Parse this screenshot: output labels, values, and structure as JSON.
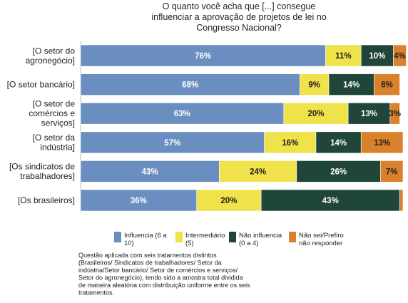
{
  "chart_data": {
    "type": "bar",
    "orientation": "horizontal",
    "stacked": true,
    "normalized": true,
    "title_lines": [
      "O quanto você acha que [...] consegue",
      "influenciar a aprovação de projetos de lei no",
      "Congresso Nacional?"
    ],
    "categories": [
      [
        "[O setor do",
        "agronegócio]"
      ],
      [
        "[O setor bancário]"
      ],
      [
        "[O setor de",
        "comércios e",
        "serviços]"
      ],
      [
        "[O setor da",
        "indústria]"
      ],
      [
        "[Os sindicatos de",
        "trabalhadores]"
      ],
      [
        "[Os brasileiros]"
      ]
    ],
    "series": [
      {
        "name_lines": [
          "Influencia (6 a",
          "10)"
        ],
        "color": "#6a8ebf",
        "label_color": "#ffffff",
        "values": [
          76,
          68,
          63,
          57,
          43,
          36
        ],
        "labels": [
          "76%",
          "68%",
          "63%",
          "57%",
          "43%",
          "36%"
        ]
      },
      {
        "name_lines": [
          "Intermediário",
          "(5)"
        ],
        "color": "#f0e24a",
        "label_color": "#222222",
        "values": [
          11,
          9,
          20,
          16,
          24,
          20
        ],
        "labels": [
          "11%",
          "9%",
          "20%",
          "16%",
          "24%",
          "20%"
        ]
      },
      {
        "name_lines": [
          "Não influencia",
          "(0 a 4)"
        ],
        "color": "#1f4638",
        "label_color": "#ffffff",
        "values": [
          10,
          14,
          13,
          14,
          26,
          43
        ],
        "labels": [
          "10%",
          "14%",
          "13%",
          "14%",
          "26%",
          "43%"
        ]
      },
      {
        "name_lines": [
          "Não sei/Prefiro",
          "não responder"
        ],
        "color": "#d9822b",
        "label_color": "#222222",
        "values": [
          4,
          8,
          3,
          13,
          7,
          1
        ],
        "labels": [
          "4%",
          "8%",
          "3%",
          "13%",
          "7%",
          ""
        ]
      }
    ],
    "xlim": [
      0,
      100
    ],
    "legend_position": "bottom",
    "note_lines": [
      "Questão aplicada com seis tratamentos distintos",
      "(Brasileiros/ Sindicatos de trabalhadores/ Setor da",
      "indústria/Setor bancário/ Setor de comércios e serviços/",
      "Setor do agronegócio), tendo sido a amostra total dividida",
      "de maneira aleatória com distribuição uniforme entre os seis",
      "tratamentos."
    ],
    "grid": false
  }
}
